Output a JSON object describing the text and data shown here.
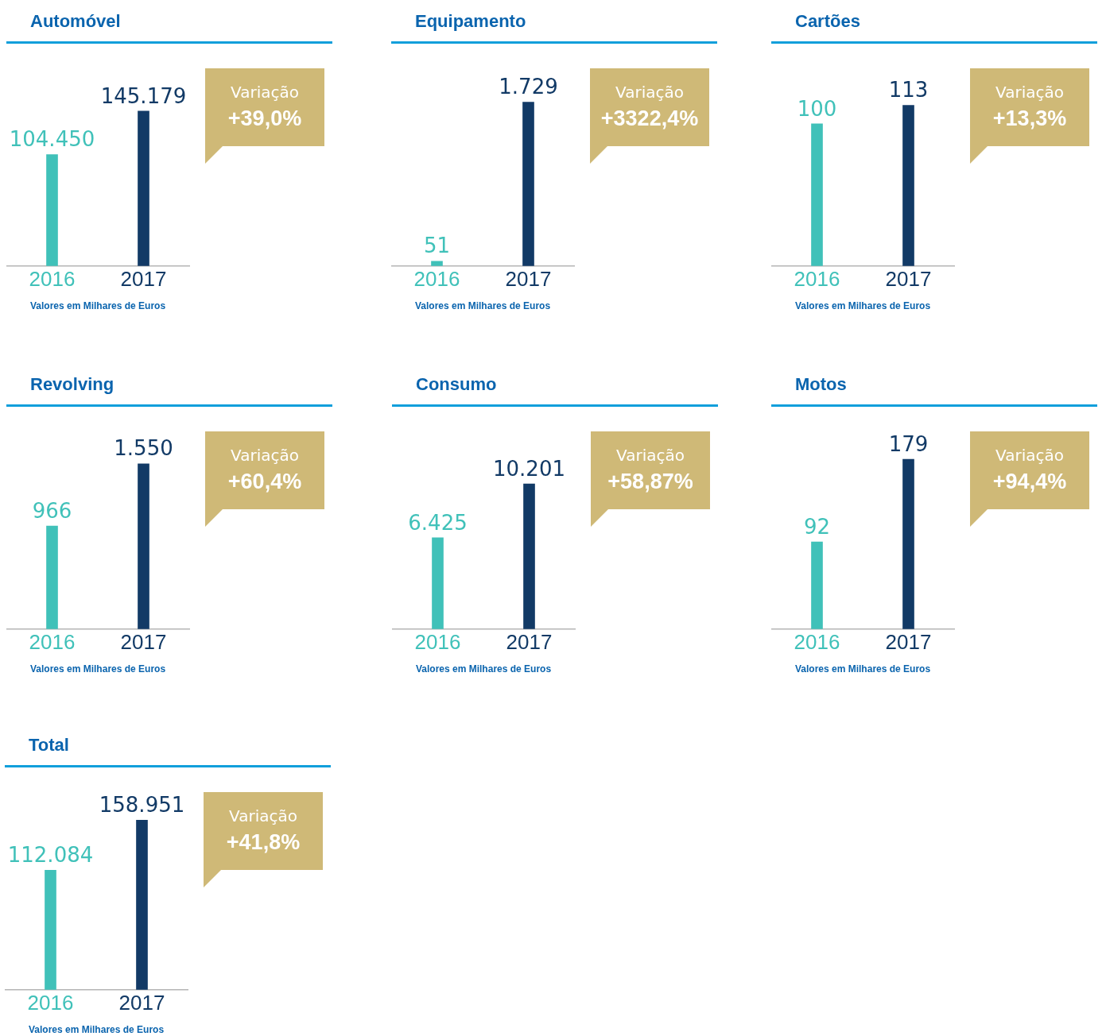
{
  "chart_data": [
    {
      "type": "bar",
      "title": "Automóvel",
      "categories": [
        "2016",
        "2017"
      ],
      "values": [
        104450,
        145179
      ],
      "colors": [
        "#40c1b9",
        "#123a66"
      ],
      "value_labels": [
        "104.450",
        "145.179"
      ],
      "annotations": [
        "Variação",
        "+39,0%",
        "Valores em Milhares de Euros"
      ]
    },
    {
      "type": "bar",
      "title": "Equipamento",
      "categories": [
        "2016",
        "2017"
      ],
      "values": [
        51,
        1729
      ],
      "colors": [
        "#40c1b9",
        "#123a66"
      ],
      "value_labels": [
        "51",
        "1.729"
      ],
      "annotations": [
        "Variação",
        "+3322,4%",
        "Valores em Milhares de Euros"
      ]
    },
    {
      "type": "bar",
      "title": "Cartões",
      "categories": [
        "2016",
        "2017"
      ],
      "values": [
        100,
        113
      ],
      "colors": [
        "#40c1b9",
        "#123a66"
      ],
      "value_labels": [
        "100",
        "113"
      ],
      "annotations": [
        "Variação",
        "+13,3%",
        "Valores em Milhares de Euros"
      ]
    },
    {
      "type": "bar",
      "title": "Revolving",
      "categories": [
        "2016",
        "2017"
      ],
      "values": [
        966,
        1550
      ],
      "colors": [
        "#40c1b9",
        "#123a66"
      ],
      "value_labels": [
        "966",
        "1.550"
      ],
      "annotations": [
        "Variação",
        "+60,4%",
        "Valores em Milhares de Euros"
      ]
    },
    {
      "type": "bar",
      "title": "Consumo",
      "categories": [
        "2016",
        "2017"
      ],
      "values": [
        6425,
        10201
      ],
      "colors": [
        "#40c1b9",
        "#123a66"
      ],
      "value_labels": [
        "6.425",
        "10.201"
      ],
      "annotations": [
        "Variação",
        "+58,87%",
        "Valores em Milhares de Euros"
      ]
    },
    {
      "type": "bar",
      "title": "Motos",
      "categories": [
        "2016",
        "2017"
      ],
      "values": [
        92,
        179
      ],
      "colors": [
        "#40c1b9",
        "#123a66"
      ],
      "value_labels": [
        "92",
        "179"
      ],
      "annotations": [
        "Variação",
        "+94,4%",
        "Valores em Milhares de Euros"
      ]
    },
    {
      "type": "bar",
      "title": "Total",
      "categories": [
        "2016",
        "2017"
      ],
      "values": [
        112084,
        158951
      ],
      "colors": [
        "#40c1b9",
        "#123a66"
      ],
      "value_labels": [
        "112.084",
        "158.951"
      ],
      "annotations": [
        "Variação",
        "+41,8%",
        "Valores em Milhares de Euros"
      ]
    }
  ]
}
